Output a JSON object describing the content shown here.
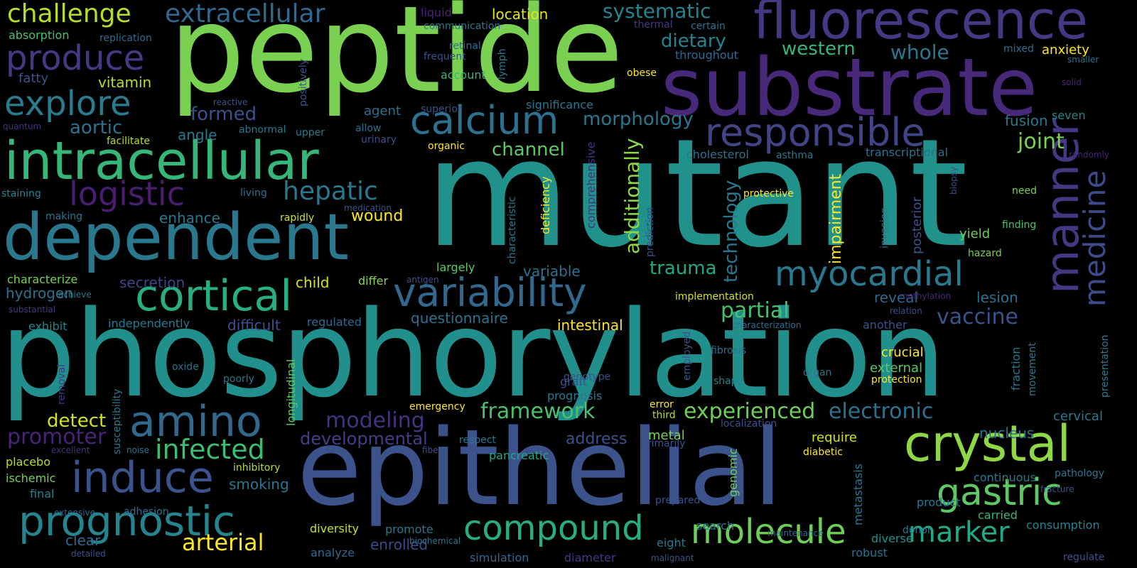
{
  "background": "#000000",
  "words": [
    {
      "t": "mutant",
      "c": "#21918c"
    },
    {
      "t": "phosphorylation",
      "c": "#21908d"
    },
    {
      "t": "peptide",
      "c": "#7ad151"
    },
    {
      "t": "epithelial",
      "c": "#3b528b"
    },
    {
      "t": "substrate",
      "c": "#482878"
    },
    {
      "t": "fluorescence",
      "c": "#443983"
    },
    {
      "t": "intracellular",
      "c": "#35b779"
    },
    {
      "t": "dependent",
      "c": "#2a788e"
    },
    {
      "t": "calcium",
      "c": "#2c728e"
    },
    {
      "t": "responsible",
      "c": "#414487"
    },
    {
      "t": "variability",
      "c": "#31688e"
    },
    {
      "t": "crystal",
      "c": "#8fd744"
    },
    {
      "t": "cortical",
      "c": "#29af7f"
    },
    {
      "t": "amino",
      "c": "#31688e"
    },
    {
      "t": "molecule",
      "c": "#6ece58"
    },
    {
      "t": "myocardial",
      "c": "#2a788e"
    },
    {
      "t": "prognostic",
      "c": "#25858e"
    },
    {
      "t": "gastric",
      "c": "#5ec962"
    },
    {
      "t": "compound",
      "c": "#28ae80"
    },
    {
      "t": "induce",
      "c": "#3b528b"
    },
    {
      "t": "explore",
      "c": "#287c8e"
    },
    {
      "t": "produce",
      "c": "#443a83"
    },
    {
      "t": "logistic",
      "c": "#481f70"
    },
    {
      "t": "infected",
      "c": "#3fbc73"
    },
    {
      "t": "manner",
      "c": "#453781"
    },
    {
      "t": "medicine",
      "c": "#3e4a89"
    },
    {
      "t": "marker",
      "c": "#22a884"
    },
    {
      "t": "challenge",
      "c": "#b5de2b"
    },
    {
      "t": "extracellular",
      "c": "#31688e"
    },
    {
      "t": "framework",
      "c": "#4ac16d"
    },
    {
      "t": "experienced",
      "c": "#6ece58"
    },
    {
      "t": "electronic",
      "c": "#2c728e"
    },
    {
      "t": "hepatic",
      "c": "#2a788e"
    },
    {
      "t": "modeling",
      "c": "#46337e"
    },
    {
      "t": "systematic",
      "c": "#25858e"
    },
    {
      "t": "morphology",
      "c": "#2a788e"
    },
    {
      "t": "channel",
      "c": "#5ec962"
    },
    {
      "t": "partial",
      "c": "#48c16e"
    },
    {
      "t": "arterial",
      "c": "#fde725"
    },
    {
      "t": "promoter",
      "c": "#482475"
    },
    {
      "t": "detect",
      "c": "#d2e21b"
    },
    {
      "t": "trauma",
      "c": "#22a884"
    },
    {
      "t": "additionally",
      "c": "#8fd744"
    },
    {
      "t": "technology",
      "c": "#2a788e"
    },
    {
      "t": "whole",
      "c": "#2a788e"
    },
    {
      "t": "western",
      "c": "#35b779"
    },
    {
      "t": "vaccine",
      "c": "#3b528b"
    },
    {
      "t": "aortic",
      "c": "#2c728e"
    },
    {
      "t": "joint",
      "c": "#7ad151"
    },
    {
      "t": "dietary",
      "c": "#25848e"
    },
    {
      "t": "formed",
      "c": "#3b528b"
    },
    {
      "t": "developmental",
      "c": "#433e85"
    },
    {
      "t": "questionnaire",
      "c": "#2c728e"
    },
    {
      "t": "diversity",
      "c": "#c8e020"
    },
    {
      "t": "smoking",
      "c": "#2a788e"
    },
    {
      "t": "location",
      "c": "#e5e419"
    },
    {
      "t": "impairment",
      "c": "#fde725"
    },
    {
      "t": "address",
      "c": "#3b528b"
    },
    {
      "t": "nucleus",
      "c": "#2a788e"
    },
    {
      "t": "enrolled",
      "c": "#3e4a89"
    },
    {
      "t": "clear",
      "c": "#31688e"
    },
    {
      "t": "fusion",
      "c": "#2a788e"
    },
    {
      "t": "hydrogen",
      "c": "#2c728e"
    },
    {
      "t": "enhance",
      "c": "#2a788e"
    },
    {
      "t": "child",
      "c": "#d2e21b"
    },
    {
      "t": "difficult",
      "c": "#3b528b"
    },
    {
      "t": "secretion",
      "c": "#414487"
    },
    {
      "t": "variable",
      "c": "#2c728e"
    },
    {
      "t": "intestinal",
      "c": "#fde725"
    },
    {
      "t": "exhibit",
      "c": "#25858e"
    },
    {
      "t": "independently",
      "c": "#2a788e"
    },
    {
      "t": "metal",
      "c": "#7ad151"
    },
    {
      "t": "angle",
      "c": "#2a788e"
    },
    {
      "t": "wound",
      "c": "#fde725"
    },
    {
      "t": "vitamin",
      "c": "#b5de2b"
    },
    {
      "t": "fatty",
      "c": "#3b528b"
    },
    {
      "t": "agent",
      "c": "#2c728e"
    },
    {
      "t": "yield",
      "c": "#6ece58"
    },
    {
      "t": "lesion",
      "c": "#2c728e"
    },
    {
      "t": "reveal",
      "c": "#31688e"
    },
    {
      "t": "require",
      "c": "#d2e21b"
    },
    {
      "t": "crucial",
      "c": "#fde725"
    },
    {
      "t": "external",
      "c": "#5ec962"
    },
    {
      "t": "cervical",
      "c": "#2a788e"
    },
    {
      "t": "diverse",
      "c": "#21918c"
    },
    {
      "t": "robust",
      "c": "#2c728e"
    },
    {
      "t": "simulation",
      "c": "#31688e"
    },
    {
      "t": "analyze",
      "c": "#31688e"
    },
    {
      "t": "promote",
      "c": "#2a788e"
    },
    {
      "t": "largely",
      "c": "#5ec962"
    },
    {
      "t": "posterior",
      "c": "#3b528b"
    },
    {
      "t": "anxiety",
      "c": "#fde725"
    },
    {
      "t": "seven",
      "c": "#25858e"
    },
    {
      "t": "account",
      "c": "#35b779"
    },
    {
      "t": "throughout",
      "c": "#31688e"
    },
    {
      "t": "absorption",
      "c": "#4ac16d"
    },
    {
      "t": "characterize",
      "c": "#7ad151"
    },
    {
      "t": "differ",
      "c": "#86d549"
    },
    {
      "t": "ischemic",
      "c": "#7ad151"
    },
    {
      "t": "placebo",
      "c": "#b5de2b"
    },
    {
      "t": "final",
      "c": "#25858e"
    },
    {
      "t": "graft",
      "c": "#3b528b"
    },
    {
      "t": "prognosis",
      "c": "#2a788e"
    },
    {
      "t": "pancreatic",
      "c": "#22a884"
    },
    {
      "t": "continuous",
      "c": "#2a788e"
    },
    {
      "t": "consumption",
      "c": "#25858e"
    },
    {
      "t": "carried",
      "c": "#35b779"
    },
    {
      "t": "product",
      "c": "#2a788e"
    },
    {
      "t": "eight",
      "c": "#2a788e"
    },
    {
      "t": "search",
      "c": "#2a788e"
    },
    {
      "t": "diameter",
      "c": "#443983"
    },
    {
      "t": "upper",
      "c": "#2a788e"
    },
    {
      "t": "allow",
      "c": "#2c728e"
    },
    {
      "t": "urinary",
      "c": "#3b528b"
    },
    {
      "t": "significance",
      "c": "#2a788e"
    },
    {
      "t": "superior",
      "c": "#3b528b"
    },
    {
      "t": "communication",
      "c": "#2a788e"
    },
    {
      "t": "liquid",
      "c": "#482475"
    },
    {
      "t": "replication",
      "c": "#31688e"
    },
    {
      "t": "retinal",
      "c": "#2c728e"
    },
    {
      "t": "frequent",
      "c": "#3b528b"
    },
    {
      "t": "positively",
      "c": "#3b528b"
    },
    {
      "t": "lymph",
      "c": "#2a788e"
    },
    {
      "t": "obese",
      "c": "#fde725"
    },
    {
      "t": "thermal",
      "c": "#443983"
    },
    {
      "t": "certain",
      "c": "#2c728e"
    },
    {
      "t": "mixed",
      "c": "#2c728e"
    },
    {
      "t": "smaller",
      "c": "#2c728e"
    },
    {
      "t": "solid",
      "c": "#482475"
    },
    {
      "t": "reactive",
      "c": "#3b528b"
    },
    {
      "t": "quantum",
      "c": "#46337e"
    },
    {
      "t": "abnormal",
      "c": "#2a788e"
    },
    {
      "t": "facilitate",
      "c": "#b5de2b"
    },
    {
      "t": "organic",
      "c": "#fde725"
    },
    {
      "t": "cholesterol",
      "c": "#2c728e"
    },
    {
      "t": "asthma",
      "c": "#2a788e"
    },
    {
      "t": "transcriptional",
      "c": "#2c728e"
    },
    {
      "t": "randomly",
      "c": "#482475"
    },
    {
      "t": "staining",
      "c": "#25858e"
    },
    {
      "t": "living",
      "c": "#2c728e"
    },
    {
      "t": "making",
      "c": "#2a788e"
    },
    {
      "t": "medication",
      "c": "#3b528b"
    },
    {
      "t": "rapidly",
      "c": "#d2e21b"
    },
    {
      "t": "protective",
      "c": "#fde725"
    },
    {
      "t": "need",
      "c": "#7ad151"
    },
    {
      "t": "finding",
      "c": "#4ac16d"
    },
    {
      "t": "hazard",
      "c": "#7ad151"
    },
    {
      "t": "deficiency",
      "c": "#fde725"
    },
    {
      "t": "comprehensive",
      "c": "#46337e"
    },
    {
      "t": "prediction",
      "c": "#3b528b"
    },
    {
      "t": "characteristic",
      "c": "#2a788e"
    },
    {
      "t": "biopsy",
      "c": "#3b528b"
    },
    {
      "t": "invasion",
      "c": "#2a788e"
    },
    {
      "t": "implementation",
      "c": "#d2e21b"
    },
    {
      "t": "methylation",
      "c": "#482475"
    },
    {
      "t": "relation",
      "c": "#3b528b"
    },
    {
      "t": "regulated",
      "c": "#31688e"
    },
    {
      "t": "characterization",
      "c": "#2c728e"
    },
    {
      "t": "another",
      "c": "#3b528b"
    },
    {
      "t": "movement",
      "c": "#2a788e"
    },
    {
      "t": "presentation",
      "c": "#2a788e"
    },
    {
      "t": "antigen",
      "c": "#3b528b"
    },
    {
      "t": "achieve",
      "c": "#2a788e"
    },
    {
      "t": "substantial",
      "c": "#443983"
    },
    {
      "t": "oxide",
      "c": "#2c728e"
    },
    {
      "t": "poorly",
      "c": "#2a788e"
    },
    {
      "t": "genotype",
      "c": "#3b528b"
    },
    {
      "t": "employed",
      "c": "#3b528b"
    },
    {
      "t": "fibrosis",
      "c": "#2c728e"
    },
    {
      "t": "shape",
      "c": "#25858e"
    },
    {
      "t": "organ",
      "c": "#2c728e"
    },
    {
      "t": "protection",
      "c": "#fde725"
    },
    {
      "t": "fraction",
      "c": "#2a788e"
    },
    {
      "t": "removal",
      "c": "#443983"
    },
    {
      "t": "susceptibility",
      "c": "#2a788e"
    },
    {
      "t": "longitudinal",
      "c": "#5ec962"
    },
    {
      "t": "emergency",
      "c": "#fde725"
    },
    {
      "t": "error",
      "c": "#fde725"
    },
    {
      "t": "third",
      "c": "#b5de2b"
    },
    {
      "t": "localization",
      "c": "#3b528b"
    },
    {
      "t": "excellent",
      "c": "#46337e"
    },
    {
      "t": "noise",
      "c": "#2a788e"
    },
    {
      "t": "fiber",
      "c": "#3b528b"
    },
    {
      "t": "respect",
      "c": "#2a788e"
    },
    {
      "t": "primarily",
      "c": "#3b528b"
    },
    {
      "t": "diabetic",
      "c": "#fde725"
    },
    {
      "t": "metastasis",
      "c": "#2a788e"
    },
    {
      "t": "genomic",
      "c": "#6ece58"
    },
    {
      "t": "inhibitory",
      "c": "#b5de2b"
    },
    {
      "t": "fracture",
      "c": "#3b528b"
    },
    {
      "t": "pathology",
      "c": "#2a788e"
    },
    {
      "t": "prepared",
      "c": "#3b528b"
    },
    {
      "t": "extensive",
      "c": "#31688e"
    },
    {
      "t": "adhesion",
      "c": "#2c728e"
    },
    {
      "t": "maintenance",
      "c": "#2c728e"
    },
    {
      "t": "donor",
      "c": "#2a788e"
    },
    {
      "t": "regulate",
      "c": "#3b528b"
    },
    {
      "t": "biochemical",
      "c": "#2a788e"
    },
    {
      "t": "detailed",
      "c": "#3b528b"
    },
    {
      "t": "malignant",
      "c": "#3b528b"
    }
  ]
}
